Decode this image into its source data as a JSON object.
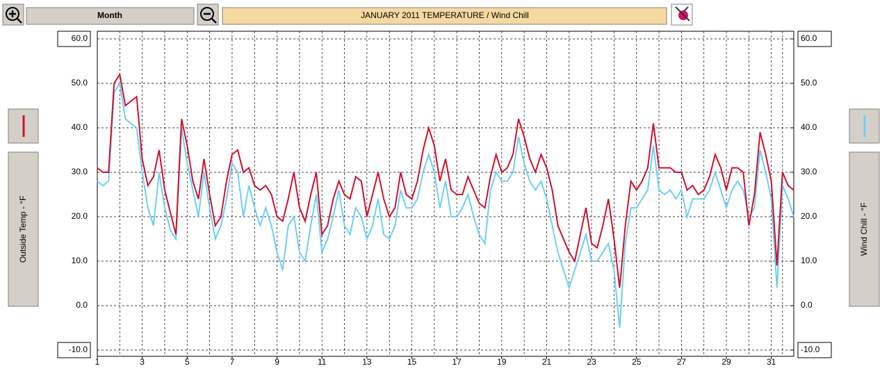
{
  "toolbar": {
    "period": "Month"
  },
  "chart_data": {
    "type": "line",
    "title": "JANUARY 2011  TEMPERATURE / Wind Chill",
    "ylabel": "Outside Temp - °F",
    "y2label": "Wind Chill - °F",
    "xlim": [
      1,
      32
    ],
    "xticks": [
      1,
      3,
      5,
      7,
      9,
      11,
      13,
      15,
      17,
      19,
      21,
      23,
      25,
      27,
      29,
      31
    ],
    "ylim": [
      -10,
      60
    ],
    "yticks": [
      {
        "value": 60,
        "label": "60.0"
      },
      {
        "value": 50,
        "label": "50.0"
      },
      {
        "value": 40,
        "label": "40.0"
      },
      {
        "value": 30,
        "label": "30.0"
      },
      {
        "value": 20,
        "label": "20.0"
      },
      {
        "value": 10,
        "label": "10.0"
      },
      {
        "value": 0,
        "label": "0.0"
      },
      {
        "value": -10,
        "label": "-10.0"
      }
    ],
    "y2lim": [
      -10,
      60
    ],
    "y2ticks": [
      {
        "value": 60,
        "label": "60.0"
      },
      {
        "value": 50,
        "label": "50.0"
      },
      {
        "value": 40,
        "label": "40.0"
      },
      {
        "value": 30,
        "label": "30.0"
      },
      {
        "value": 20,
        "label": "20.0"
      },
      {
        "value": 10,
        "label": "10.0"
      },
      {
        "value": 0,
        "label": "0.0"
      },
      {
        "value": -10,
        "label": "-10.0"
      }
    ],
    "grid": true,
    "x": [
      1,
      1.25,
      1.5,
      1.75,
      2,
      2.25,
      2.5,
      2.75,
      3,
      3.25,
      3.5,
      3.75,
      4,
      4.25,
      4.5,
      4.75,
      5,
      5.25,
      5.5,
      5.75,
      6,
      6.25,
      6.5,
      6.75,
      7,
      7.25,
      7.5,
      7.75,
      8,
      8.25,
      8.5,
      8.75,
      9,
      9.25,
      9.5,
      9.75,
      10,
      10.25,
      10.5,
      10.75,
      11,
      11.25,
      11.5,
      11.75,
      12,
      12.25,
      12.5,
      12.75,
      13,
      13.25,
      13.5,
      13.75,
      14,
      14.25,
      14.5,
      14.75,
      15,
      15.25,
      15.5,
      15.75,
      16,
      16.25,
      16.5,
      16.75,
      17,
      17.25,
      17.5,
      17.75,
      18,
      18.25,
      18.5,
      18.75,
      19,
      19.25,
      19.5,
      19.75,
      20,
      20.25,
      20.5,
      20.75,
      21,
      21.25,
      21.5,
      21.75,
      22,
      22.25,
      22.5,
      22.75,
      23,
      23.25,
      23.5,
      23.75,
      24,
      24.25,
      24.5,
      24.75,
      25,
      25.25,
      25.5,
      25.75,
      26,
      26.25,
      26.5,
      26.75,
      27,
      27.25,
      27.5,
      27.75,
      28,
      28.25,
      28.5,
      28.75,
      29,
      29.25,
      29.5,
      29.75,
      30,
      30.25,
      30.5,
      30.75,
      31,
      31.25,
      31.5,
      31.75,
      32
    ],
    "series": [
      {
        "color": "#d0102a",
        "values": [
          31,
          30,
          30,
          50,
          52,
          45,
          46,
          47,
          33,
          27,
          29,
          35,
          26,
          21,
          16,
          42,
          36,
          28,
          24,
          33,
          25,
          18,
          20,
          28,
          34,
          35,
          30,
          31,
          27,
          26,
          27,
          25,
          20,
          19,
          24,
          30,
          22,
          19,
          25,
          30,
          16,
          18,
          24,
          28,
          25,
          24,
          29,
          28,
          20,
          25,
          30,
          24,
          20,
          22,
          30,
          25,
          24,
          28,
          35,
          40,
          36,
          28,
          33,
          26,
          25,
          25,
          29,
          26,
          23,
          22,
          29,
          34,
          30,
          31,
          34,
          42,
          38,
          33,
          30,
          34,
          31,
          26,
          18,
          15,
          12,
          10,
          16,
          22,
          14,
          13,
          18,
          24,
          15,
          4,
          18,
          28,
          26,
          28,
          31,
          41,
          31,
          31,
          31,
          30,
          30,
          26,
          27,
          25,
          26,
          29,
          34,
          31,
          26,
          31,
          31,
          30,
          18,
          25,
          39,
          34,
          28,
          9,
          30,
          27,
          26
        ]
      },
      {
        "color": "#6ccff6",
        "axis": "y2",
        "values": [
          28,
          27,
          28,
          48,
          50,
          42,
          41,
          40,
          30,
          22,
          18,
          30,
          22,
          17,
          15,
          40,
          32,
          26,
          20,
          30,
          22,
          15,
          18,
          24,
          32,
          30,
          20,
          27,
          22,
          18,
          22,
          18,
          12,
          8,
          18,
          20,
          12,
          10,
          18,
          25,
          12,
          15,
          20,
          26,
          18,
          16,
          22,
          20,
          15,
          18,
          24,
          16,
          15,
          18,
          26,
          22,
          22,
          24,
          30,
          34,
          30,
          22,
          28,
          20,
          20,
          22,
          25,
          20,
          16,
          14,
          26,
          30,
          28,
          28,
          30,
          38,
          32,
          28,
          26,
          28,
          24,
          18,
          12,
          8,
          4,
          8,
          12,
          16,
          10,
          10,
          12,
          14,
          8,
          -5,
          14,
          22,
          22,
          24,
          26,
          36,
          26,
          25,
          26,
          24,
          26,
          20,
          24,
          24,
          24,
          26,
          30,
          26,
          22,
          26,
          28,
          26,
          20,
          22,
          35,
          30,
          24,
          4,
          27,
          24,
          20
        ]
      }
    ]
  }
}
